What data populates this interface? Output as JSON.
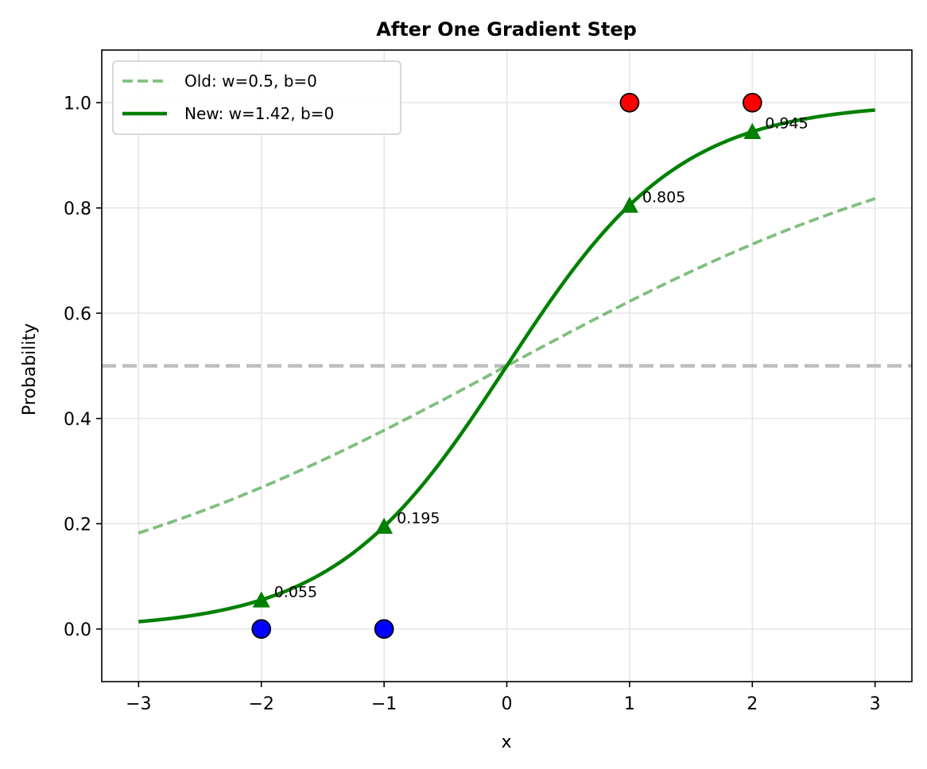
{
  "chart_data": {
    "type": "line",
    "title": "After One Gradient Step",
    "xlabel": "x",
    "ylabel": "Probability",
    "xlim": [
      -3.3,
      3.3
    ],
    "ylim": [
      -0.1,
      1.1
    ],
    "xticks": [
      -3,
      -2,
      -1,
      0,
      1,
      2,
      3
    ],
    "xtick_labels": [
      "−3",
      "−2",
      "−1",
      "0",
      "1",
      "2",
      "3"
    ],
    "yticks": [
      0.0,
      0.2,
      0.4,
      0.6,
      0.8,
      1.0
    ],
    "ytick_labels": [
      "0.0",
      "0.2",
      "0.4",
      "0.6",
      "0.8",
      "1.0"
    ],
    "grid": true,
    "legend_position": "top-left",
    "threshold": 0.5,
    "series": [
      {
        "name": "Old: w=0.5, b=0",
        "kind": "sigmoid",
        "w": 0.5,
        "b": 0,
        "x_range": [
          -3,
          3
        ],
        "style": "dashed",
        "color": "#008000",
        "opacity": 0.5
      },
      {
        "name": "New: w=1.42, b=0",
        "kind": "sigmoid",
        "w": 1.42,
        "b": 0,
        "x_range": [
          -3,
          3
        ],
        "style": "solid",
        "color": "#008000",
        "opacity": 1
      }
    ],
    "data_points": [
      {
        "x": -2,
        "y": 0,
        "color": "#0000ff"
      },
      {
        "x": -1,
        "y": 0,
        "color": "#0000ff"
      },
      {
        "x": 1,
        "y": 1,
        "color": "#ff0000"
      },
      {
        "x": 2,
        "y": 1,
        "color": "#ff0000"
      }
    ],
    "predictions": [
      {
        "x": -2,
        "y": 0.055,
        "label": "0.055"
      },
      {
        "x": -1,
        "y": 0.195,
        "label": "0.195"
      },
      {
        "x": 1,
        "y": 0.805,
        "label": "0.805"
      },
      {
        "x": 2,
        "y": 0.945,
        "label": "0.945"
      }
    ],
    "colors": {
      "curve": "#008000",
      "threshold": "#bdbdbd",
      "grid": "#e6e6e6",
      "negative": "#0000ff",
      "positive": "#ff0000"
    }
  }
}
